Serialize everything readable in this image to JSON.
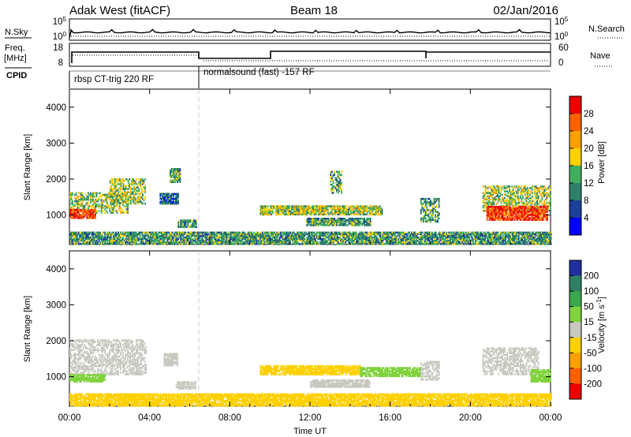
{
  "header": {
    "station": "Adak West (fitACF)",
    "beam": "Beam 18",
    "date": "02/Jan/2016"
  },
  "left_labels": {
    "nsky": "N.Sky",
    "freq_line1": "Freq.",
    "freq_line2": "[MHz]",
    "cpid": "CPID"
  },
  "right_labels": {
    "nsearch": "N.Search",
    "nave": "Nave"
  },
  "noise_panel": {
    "left_ticks": [
      "10^5",
      "10^0"
    ],
    "right_ticks": [
      "10^5",
      "10^0"
    ]
  },
  "freq_panel": {
    "left_ticks": [
      "18",
      "8"
    ],
    "right_ticks": [
      "60",
      "0"
    ]
  },
  "cpid_panel": {
    "segments": [
      {
        "label": "rbsp CT-trig 220 RF",
        "start_hr": 0.0,
        "end_hr": 6.5
      },
      {
        "label": "normalsound (fast) -157 RF",
        "start_hr": 6.5,
        "end_hr": 24.0
      }
    ]
  },
  "chart_data": [
    {
      "type": "heatmap",
      "name": "power",
      "ylabel": "Slant Range [km]",
      "xlim": [
        0,
        24
      ],
      "ylim": [
        180,
        4500
      ],
      "y_ticks": [
        1000,
        2000,
        3000,
        4000
      ],
      "colorbar": {
        "label": "Power [dB]",
        "ticks": [
          "28",
          "24",
          "20",
          "16",
          "12",
          "8",
          "4"
        ],
        "colors": [
          "#ee0000",
          "#ff6000",
          "#ff9f00",
          "#ffd000",
          "#40b060",
          "#2e7f6a",
          "#1b3f9a",
          "#0000ff"
        ]
      },
      "regions": [
        {
          "t0": 0.0,
          "t1": 2.9,
          "r0": 1050,
          "r1": 1600,
          "level": 12
        },
        {
          "t0": 0.0,
          "t1": 1.3,
          "r0": 900,
          "r1": 1150,
          "level": 24
        },
        {
          "t0": 2.0,
          "t1": 3.8,
          "r0": 1300,
          "r1": 2000,
          "level": 12
        },
        {
          "t0": 4.5,
          "t1": 5.4,
          "r0": 1300,
          "r1": 1600,
          "level": 4
        },
        {
          "t0": 5.0,
          "t1": 5.5,
          "r0": 1900,
          "r1": 2300,
          "level": 8
        },
        {
          "t0": 5.4,
          "t1": 6.3,
          "r0": 650,
          "r1": 850,
          "level": 8
        },
        {
          "t0": 9.5,
          "t1": 15.6,
          "r0": 1000,
          "r1": 1250,
          "level": 12
        },
        {
          "t0": 11.8,
          "t1": 15.0,
          "r0": 700,
          "r1": 900,
          "level": 8
        },
        {
          "t0": 17.5,
          "t1": 18.4,
          "r0": 800,
          "r1": 1450,
          "level": 8
        },
        {
          "t0": 20.6,
          "t1": 24.0,
          "r0": 1100,
          "r1": 1800,
          "level": 12
        },
        {
          "t0": 20.8,
          "t1": 23.8,
          "r0": 850,
          "r1": 1250,
          "level": 24
        },
        {
          "t0": 13.0,
          "t1": 13.6,
          "r0": 1600,
          "r1": 2200,
          "level": 8
        },
        {
          "t0": 0.0,
          "t1": 24.0,
          "r0": 180,
          "r1": 500,
          "level": 8
        }
      ]
    },
    {
      "type": "heatmap",
      "name": "velocity",
      "ylabel": "Slant Range [km]",
      "xlabel": "Time UT",
      "xlim": [
        0,
        24
      ],
      "ylim": [
        180,
        4500
      ],
      "x_ticks": [
        "00:00",
        "04:00",
        "08:00",
        "12:00",
        "16:00",
        "20:00",
        "00:00"
      ],
      "y_ticks": [
        1000,
        2000,
        3000,
        4000
      ],
      "colorbar": {
        "label": "Velocity [m s^-1]",
        "ticks": [
          "200",
          "100",
          "50",
          "15",
          "-15",
          "-50",
          "-100",
          "-200"
        ],
        "colors": [
          "#2030a0",
          "#2f7f64",
          "#3aa84a",
          "#7fd33c",
          "#c8c8c0",
          "#ffd000",
          "#ff9f00",
          "#ff6000",
          "#ee0000"
        ]
      },
      "regions": [
        {
          "t0": 0.0,
          "t1": 3.8,
          "r0": 1050,
          "r1": 2000,
          "vel": 0
        },
        {
          "t0": 0.0,
          "t1": 1.8,
          "r0": 850,
          "r1": 1050,
          "vel": 30
        },
        {
          "t0": 4.7,
          "t1": 5.4,
          "r0": 1300,
          "r1": 1650,
          "vel": 0
        },
        {
          "t0": 5.3,
          "t1": 6.3,
          "r0": 650,
          "r1": 850,
          "vel": 0
        },
        {
          "t0": 9.5,
          "t1": 14.5,
          "r0": 1050,
          "r1": 1300,
          "vel": -40
        },
        {
          "t0": 14.5,
          "t1": 17.5,
          "r0": 1000,
          "r1": 1250,
          "vel": 30
        },
        {
          "t0": 12.0,
          "t1": 15.0,
          "r0": 700,
          "r1": 900,
          "vel": 0
        },
        {
          "t0": 17.5,
          "t1": 18.4,
          "r0": 900,
          "r1": 1400,
          "vel": 0
        },
        {
          "t0": 20.6,
          "t1": 23.4,
          "r0": 1050,
          "r1": 1800,
          "vel": 0
        },
        {
          "t0": 23.0,
          "t1": 24.0,
          "r0": 850,
          "r1": 1200,
          "vel": 30
        },
        {
          "t0": 0.0,
          "t1": 24.0,
          "r0": 180,
          "r1": 500,
          "vel": -30
        }
      ]
    }
  ]
}
